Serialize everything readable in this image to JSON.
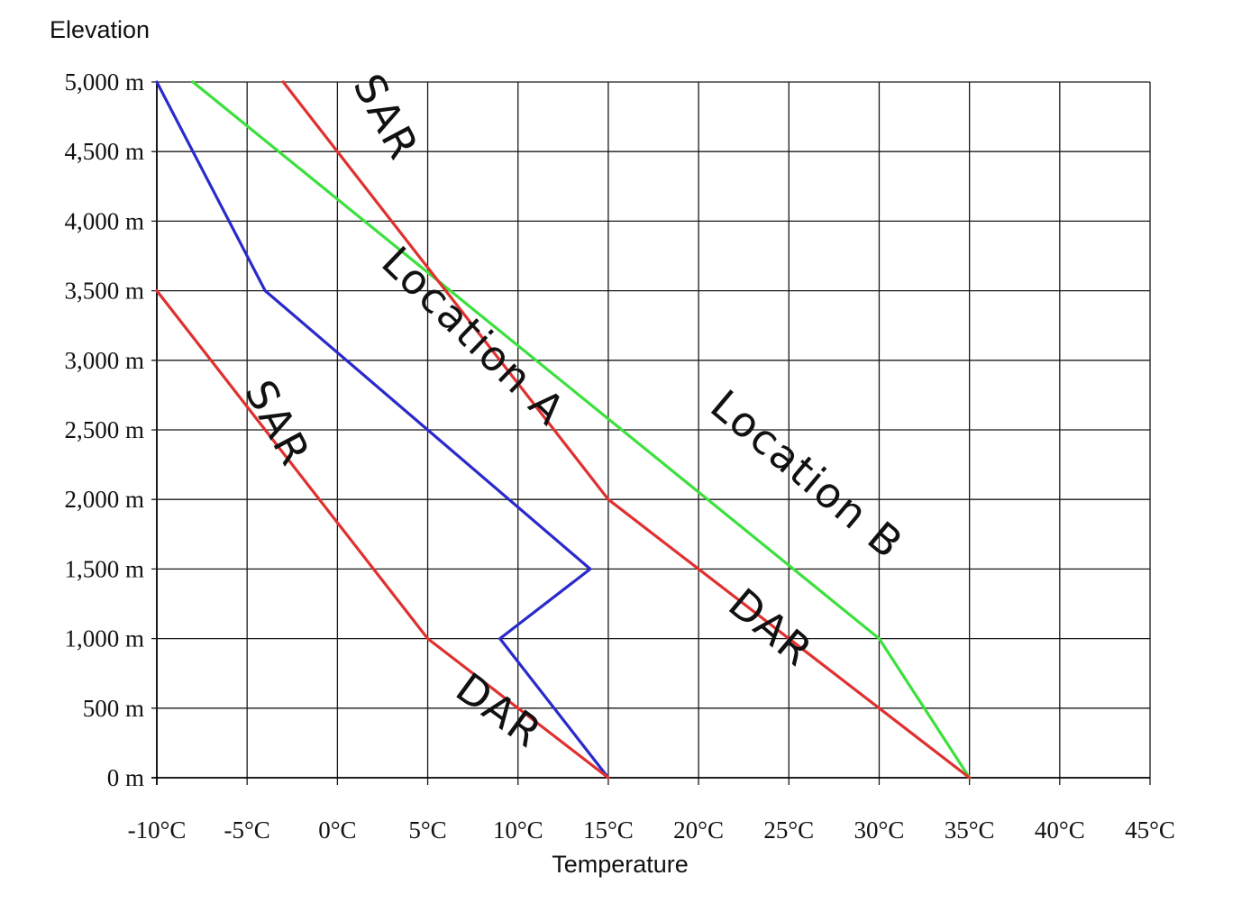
{
  "chart_data": {
    "type": "line",
    "ylabel": "Elevation",
    "xlabel": "Temperature",
    "xlim": [
      -10,
      45
    ],
    "ylim": [
      0,
      5000
    ],
    "grid": true,
    "x_ticks": [
      -10,
      -5,
      0,
      5,
      10,
      15,
      20,
      25,
      30,
      35,
      40,
      45
    ],
    "x_tick_labels": [
      "-10°C",
      "-5°C",
      "0°C",
      "5°C",
      "10°C",
      "15°C",
      "20°C",
      "25°C",
      "30°C",
      "35°C",
      "40°C",
      "45°C"
    ],
    "y_ticks": [
      0,
      500,
      1000,
      1500,
      2000,
      2500,
      3000,
      3500,
      4000,
      4500,
      5000
    ],
    "y_tick_labels": [
      "0 m",
      "500 m",
      "1,000 m",
      "1,500 m",
      "2,000 m",
      "2,500 m",
      "3,000 m",
      "3,500 m",
      "4,000 m",
      "4,500 m",
      "5,000 m"
    ],
    "series": [
      {
        "color": "#2a2acc",
        "points": [
          [
            15,
            0
          ],
          [
            9,
            1000
          ],
          [
            14,
            1500
          ],
          [
            5,
            2500
          ],
          [
            -4,
            3500
          ],
          [
            -10,
            5000
          ]
        ]
      },
      {
        "color": "#e03030",
        "points": [
          [
            15,
            0
          ],
          [
            5,
            1000
          ],
          [
            -10,
            3500
          ]
        ]
      },
      {
        "color": "#3ce03c",
        "points": [
          [
            35,
            0
          ],
          [
            30,
            1000
          ],
          [
            -8,
            5000
          ]
        ]
      },
      {
        "color": "#e03030",
        "points": [
          [
            35,
            0
          ],
          [
            15,
            2000
          ],
          [
            -3,
            5000
          ]
        ]
      }
    ],
    "annotations": [
      {
        "text": "SAR",
        "x": -4,
        "y": 2500,
        "rotate": 62
      },
      {
        "text": "Location A",
        "x": 7,
        "y": 3100,
        "rotate": 44
      },
      {
        "text": "DAR",
        "x": 8.5,
        "y": 400,
        "rotate": 36
      },
      {
        "text": "SAR",
        "x": 2,
        "y": 4700,
        "rotate": 62
      },
      {
        "text": "Location B",
        "x": 25.5,
        "y": 2100,
        "rotate": 40
      },
      {
        "text": "DAR",
        "x": 23.5,
        "y": 1000,
        "rotate": 40
      }
    ]
  }
}
